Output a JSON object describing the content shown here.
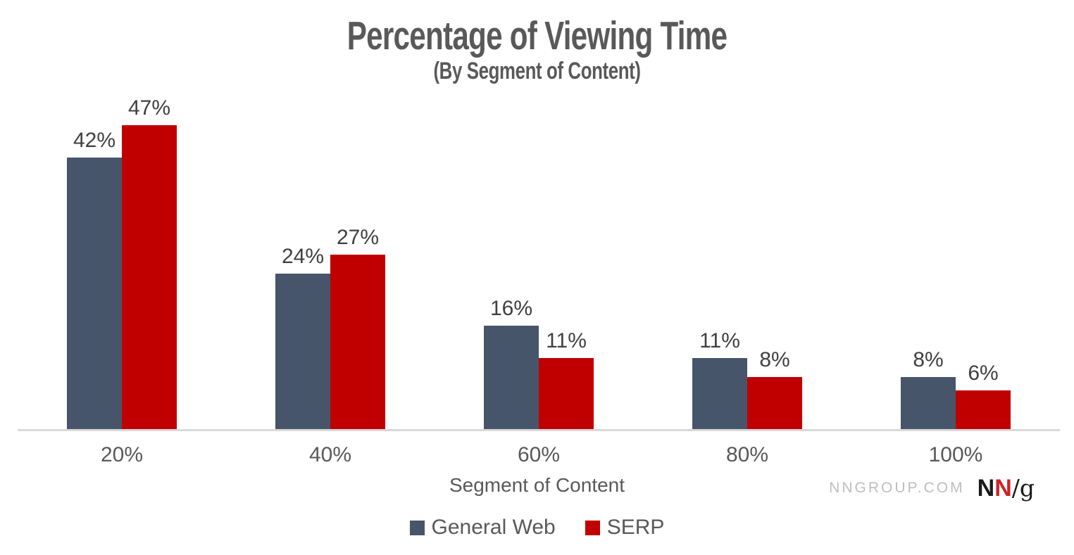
{
  "title": "Percentage of Viewing Time",
  "subtitle": "(By Segment of Content)",
  "xlabel": "Segment of Content",
  "colors": {
    "general_web": "#46556A",
    "serp": "#C00000",
    "axis_line": "#D9D9D9",
    "title_text": "#595959",
    "value_label": "#404040",
    "brand_gray": "#BFBFBF",
    "logo_black": "#1a1a1a",
    "logo_red": "#CE2127"
  },
  "chart_data": {
    "type": "bar",
    "title": "Percentage of Viewing Time",
    "subtitle": "(By Segment of Content)",
    "xlabel": "Segment of Content",
    "ylabel": "",
    "categories": [
      "20%",
      "40%",
      "60%",
      "80%",
      "100%"
    ],
    "series": [
      {
        "name": "General Web",
        "color_key": "general_web",
        "values": [
          42,
          24,
          16,
          11,
          8
        ],
        "labels": [
          "42%",
          "24%",
          "16%",
          "11%",
          "8%"
        ]
      },
      {
        "name": "SERP",
        "color_key": "serp",
        "values": [
          47,
          27,
          11,
          8,
          6
        ],
        "labels": [
          "47%",
          "27%",
          "11%",
          "8%",
          "6%"
        ]
      }
    ],
    "ylim": [
      0,
      50
    ],
    "value_suffix": "%",
    "grid": false,
    "legend_position": "bottom"
  },
  "legend": {
    "items": [
      {
        "label": "General Web",
        "color_key": "general_web"
      },
      {
        "label": "SERP",
        "color_key": "serp"
      }
    ]
  },
  "branding": {
    "site": "NNGROUP.COM",
    "logo_n1": "N",
    "logo_n2": "N",
    "logo_slash_g": "/g"
  }
}
